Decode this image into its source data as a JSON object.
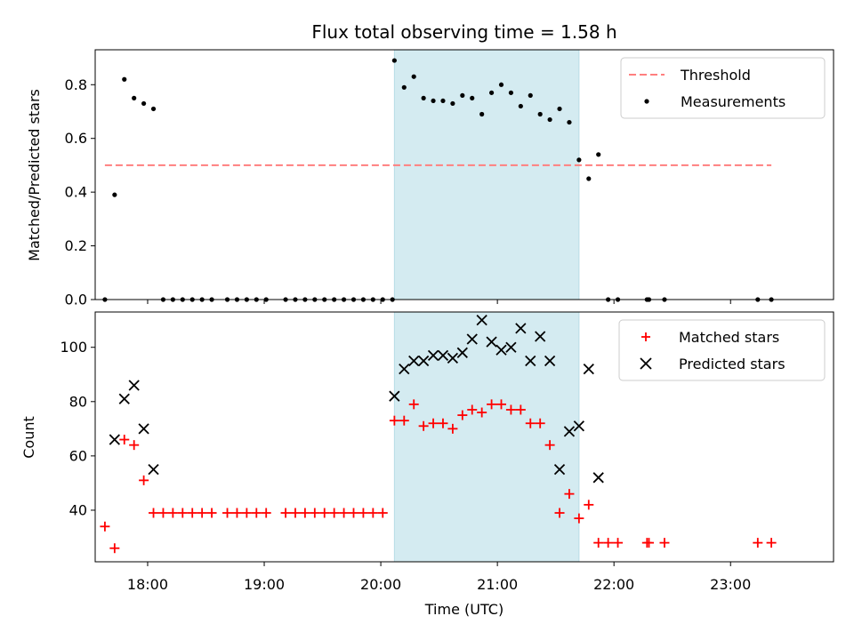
{
  "figure": {
    "title": "Flux total observing time = 1.58 h",
    "xlabel": "Time (UTC)"
  },
  "chart_data": [
    {
      "type": "scatter",
      "panel": "top",
      "ylabel": "Matched/Predicted stars",
      "xlim": [
        "17:33",
        "23:53"
      ],
      "ylim": [
        0,
        0.93
      ],
      "y_ticks": [
        "0.0",
        "0.2",
        "0.4",
        "0.6",
        "0.8"
      ],
      "y_tick_values": [
        0,
        0.2,
        0.4,
        0.6,
        0.8
      ],
      "grid": false,
      "legend_position": "top-right",
      "highlight_span": {
        "x_start": "20:07",
        "x_end": "21:42",
        "color": "#d4ebf1"
      },
      "threshold": {
        "name": "Threshold",
        "y": 0.5,
        "x_start": "17:38",
        "x_end": "23:21",
        "color": "#ff7f7f",
        "style": "dashed"
      },
      "series": [
        {
          "name": "Measurements",
          "color": "#000000",
          "marker": "dot",
          "points": [
            [
              "17:38",
              0.0
            ],
            [
              "17:43",
              0.39
            ],
            [
              "17:48",
              0.82
            ],
            [
              "17:53",
              0.75
            ],
            [
              "17:58",
              0.73
            ],
            [
              "18:03",
              0.71
            ],
            [
              "18:08",
              0.0
            ],
            [
              "18:13",
              0.0
            ],
            [
              "18:18",
              0.0
            ],
            [
              "18:23",
              0.0
            ],
            [
              "18:28",
              0.0
            ],
            [
              "18:33",
              0.0
            ],
            [
              "18:41",
              0.0
            ],
            [
              "18:46",
              0.0
            ],
            [
              "18:51",
              0.0
            ],
            [
              "18:56",
              0.0
            ],
            [
              "19:01",
              0.0
            ],
            [
              "19:11",
              0.0
            ],
            [
              "19:16",
              0.0
            ],
            [
              "19:21",
              0.0
            ],
            [
              "19:26",
              0.0
            ],
            [
              "19:31",
              0.0
            ],
            [
              "19:36",
              0.0
            ],
            [
              "19:41",
              0.0
            ],
            [
              "19:46",
              0.0
            ],
            [
              "19:51",
              0.0
            ],
            [
              "19:56",
              0.0
            ],
            [
              "20:01",
              0.0
            ],
            [
              "20:06",
              0.0
            ],
            [
              "20:07",
              0.89
            ],
            [
              "20:12",
              0.79
            ],
            [
              "20:17",
              0.83
            ],
            [
              "20:22",
              0.75
            ],
            [
              "20:27",
              0.74
            ],
            [
              "20:32",
              0.74
            ],
            [
              "20:37",
              0.73
            ],
            [
              "20:42",
              0.76
            ],
            [
              "20:47",
              0.75
            ],
            [
              "20:52",
              0.69
            ],
            [
              "20:57",
              0.77
            ],
            [
              "21:02",
              0.8
            ],
            [
              "21:07",
              0.77
            ],
            [
              "21:12",
              0.72
            ],
            [
              "21:17",
              0.76
            ],
            [
              "21:22",
              0.69
            ],
            [
              "21:27",
              0.67
            ],
            [
              "21:32",
              0.71
            ],
            [
              "21:37",
              0.66
            ],
            [
              "21:42",
              0.52
            ],
            [
              "21:47",
              0.45
            ],
            [
              "21:52",
              0.54
            ],
            [
              "21:57",
              0.0
            ],
            [
              "22:02",
              0.0
            ],
            [
              "22:17",
              0.0
            ],
            [
              "22:18",
              0.0
            ],
            [
              "22:26",
              0.0
            ],
            [
              "23:14",
              0.0
            ],
            [
              "23:21",
              0.0
            ]
          ]
        }
      ]
    },
    {
      "type": "scatter",
      "panel": "bottom",
      "ylabel": "Count",
      "xlim": [
        "17:33",
        "23:53"
      ],
      "ylim": [
        21,
        113
      ],
      "y_ticks": [
        "40",
        "60",
        "80",
        "100"
      ],
      "y_tick_values": [
        40,
        60,
        80,
        100
      ],
      "x_ticks": [
        "18:00",
        "19:00",
        "20:00",
        "21:00",
        "22:00",
        "23:00"
      ],
      "grid": false,
      "legend_position": "top-right",
      "highlight_span": {
        "x_start": "20:07",
        "x_end": "21:42",
        "color": "#d4ebf1"
      },
      "series": [
        {
          "name": "Matched stars",
          "color": "#ff0000",
          "marker": "plus",
          "points": [
            [
              "17:38",
              34
            ],
            [
              "17:43",
              26
            ],
            [
              "17:48",
              66
            ],
            [
              "17:53",
              64
            ],
            [
              "17:58",
              51
            ],
            [
              "18:03",
              39
            ],
            [
              "18:08",
              39
            ],
            [
              "18:13",
              39
            ],
            [
              "18:18",
              39
            ],
            [
              "18:23",
              39
            ],
            [
              "18:28",
              39
            ],
            [
              "18:33",
              39
            ],
            [
              "18:41",
              39
            ],
            [
              "18:46",
              39
            ],
            [
              "18:51",
              39
            ],
            [
              "18:56",
              39
            ],
            [
              "19:01",
              39
            ],
            [
              "19:11",
              39
            ],
            [
              "19:16",
              39
            ],
            [
              "19:21",
              39
            ],
            [
              "19:26",
              39
            ],
            [
              "19:31",
              39
            ],
            [
              "19:36",
              39
            ],
            [
              "19:41",
              39
            ],
            [
              "19:46",
              39
            ],
            [
              "19:51",
              39
            ],
            [
              "19:56",
              39
            ],
            [
              "20:01",
              39
            ],
            [
              "20:07",
              73
            ],
            [
              "20:12",
              73
            ],
            [
              "20:17",
              79
            ],
            [
              "20:22",
              71
            ],
            [
              "20:27",
              72
            ],
            [
              "20:32",
              72
            ],
            [
              "20:37",
              70
            ],
            [
              "20:42",
              75
            ],
            [
              "20:47",
              77
            ],
            [
              "20:52",
              76
            ],
            [
              "20:57",
              79
            ],
            [
              "21:02",
              79
            ],
            [
              "21:07",
              77
            ],
            [
              "21:12",
              77
            ],
            [
              "21:17",
              72
            ],
            [
              "21:22",
              72
            ],
            [
              "21:27",
              64
            ],
            [
              "21:32",
              39
            ],
            [
              "21:37",
              46
            ],
            [
              "21:42",
              37
            ],
            [
              "21:47",
              42
            ],
            [
              "21:52",
              28
            ],
            [
              "21:57",
              28
            ],
            [
              "22:02",
              28
            ],
            [
              "22:17",
              28
            ],
            [
              "22:18",
              28
            ],
            [
              "22:26",
              28
            ],
            [
              "23:14",
              28
            ],
            [
              "23:21",
              28
            ]
          ]
        },
        {
          "name": "Predicted stars",
          "color": "#000000",
          "marker": "x",
          "points": [
            [
              "17:43",
              66
            ],
            [
              "17:48",
              81
            ],
            [
              "17:53",
              86
            ],
            [
              "17:58",
              70
            ],
            [
              "18:03",
              55
            ],
            [
              "20:07",
              82
            ],
            [
              "20:12",
              92
            ],
            [
              "20:17",
              95
            ],
            [
              "20:22",
              95
            ],
            [
              "20:27",
              97
            ],
            [
              "20:32",
              97
            ],
            [
              "20:37",
              96
            ],
            [
              "20:42",
              98
            ],
            [
              "20:47",
              103
            ],
            [
              "20:52",
              110
            ],
            [
              "20:57",
              102
            ],
            [
              "21:02",
              99
            ],
            [
              "21:07",
              100
            ],
            [
              "21:12",
              107
            ],
            [
              "21:17",
              95
            ],
            [
              "21:22",
              104
            ],
            [
              "21:27",
              95
            ],
            [
              "21:32",
              55
            ],
            [
              "21:37",
              69
            ],
            [
              "21:42",
              71
            ],
            [
              "21:47",
              92
            ],
            [
              "21:52",
              52
            ]
          ]
        }
      ]
    }
  ]
}
